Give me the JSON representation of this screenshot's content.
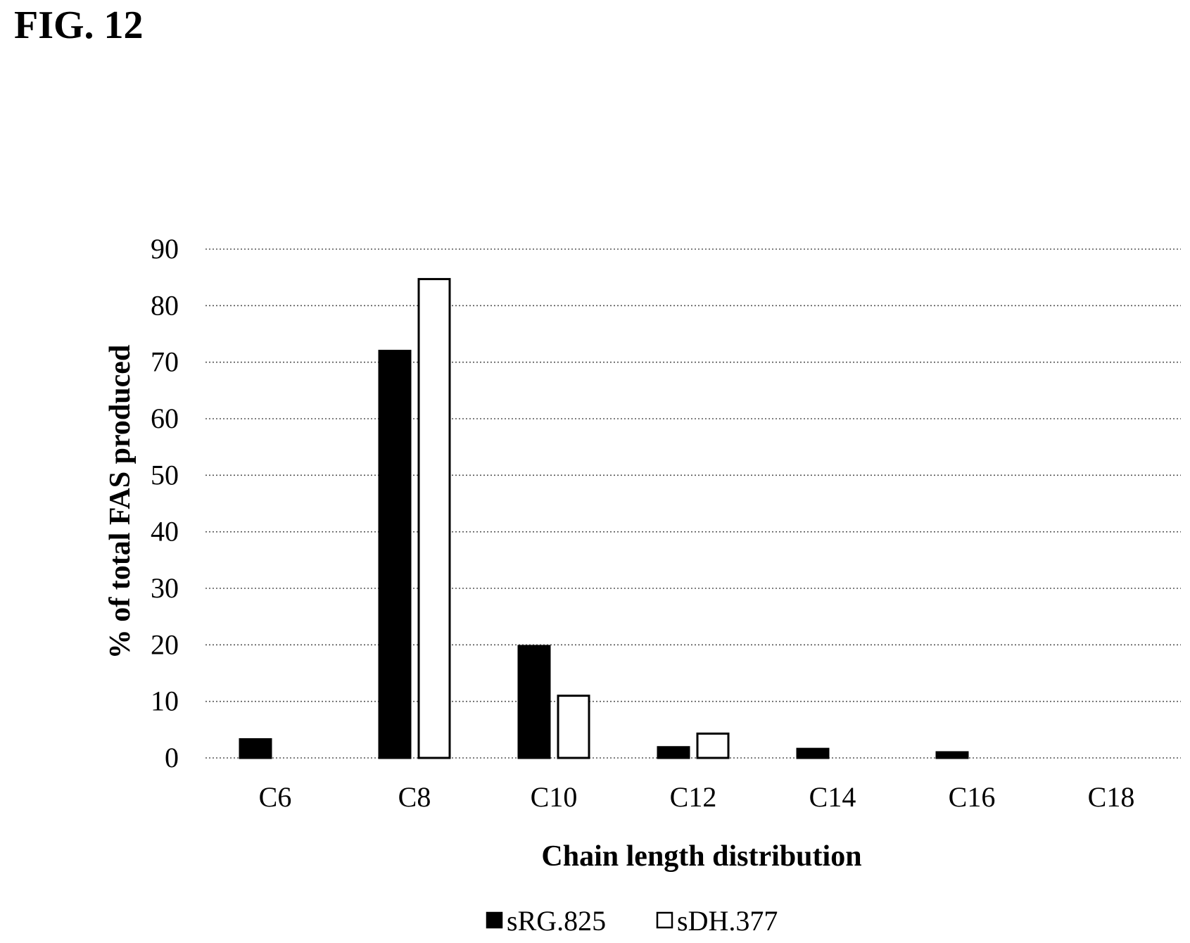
{
  "figure_label": "FIG. 12",
  "chart_data": {
    "type": "bar",
    "categories": [
      "C6",
      "C8",
      "C10",
      "C12",
      "C14",
      "C16",
      "C18"
    ],
    "series": [
      {
        "name": "sRG.825",
        "color": "#000000",
        "fill": "#000000",
        "values": [
          3.3,
          72,
          19.8,
          1.9,
          1.6,
          1.0,
          0
        ]
      },
      {
        "name": "sDH.377",
        "color": "#000000",
        "fill": "#ffffff",
        "values": [
          0,
          84.7,
          11.0,
          4.3,
          0,
          0,
          0
        ]
      }
    ],
    "xlabel": "Chain length distribution",
    "ylabel": "% of total FAS produced",
    "ylim": [
      0,
      90
    ],
    "yticks": [
      0,
      10,
      20,
      30,
      40,
      50,
      60,
      70,
      80,
      90
    ],
    "grid": true,
    "grid_style": "dotted",
    "legend_position": "bottom-center"
  }
}
